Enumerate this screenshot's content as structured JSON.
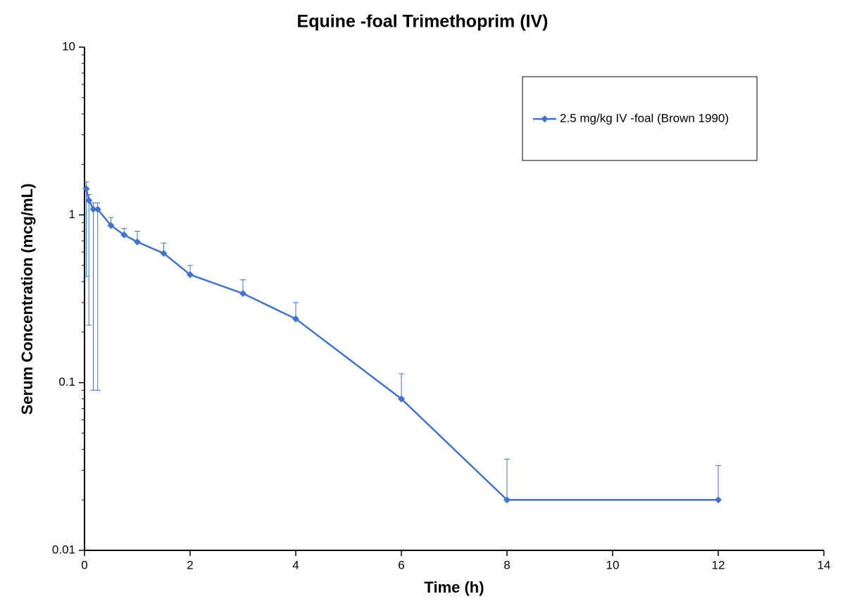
{
  "chart_data": {
    "type": "line",
    "title": "Equine -foal Trimethoprim (IV)",
    "x_label": "Time (h)",
    "y_label": "Serum Concentration (mcg/mL)",
    "x": [
      0.033,
      0.083,
      0.167,
      0.25,
      0.5,
      0.75,
      1,
      1.5,
      2,
      3,
      4,
      6,
      8,
      12
    ],
    "series": [
      {
        "name": "2.5 mg/kg IV -foal (Brown 1990)",
        "color": "#4472c4",
        "values": [
          1.43,
          1.22,
          1.08,
          1.08,
          0.865,
          0.76,
          0.69,
          0.59,
          0.44,
          0.34,
          0.24,
          0.08,
          0.02,
          0.02
        ],
        "errors_plus": [
          0.14,
          0.1,
          0.1,
          0.1,
          0.1,
          0.07,
          0.11,
          0.09,
          0.06,
          0.07,
          0.06,
          0.033,
          0.015,
          0.012
        ],
        "errors_minus": [
          1.0,
          1.0,
          0.99,
          0.99,
          null,
          null,
          null,
          null,
          null,
          null,
          null,
          null,
          null,
          null
        ]
      }
    ],
    "xlim": [
      0,
      14
    ],
    "xticks": [
      0,
      2,
      4,
      6,
      8,
      10,
      12,
      14
    ],
    "ylim": [
      0.01,
      10
    ],
    "yticks": [
      0.01,
      0.1,
      1,
      10
    ],
    "y_scale": "log",
    "legend": "upper right",
    "grid": false
  }
}
